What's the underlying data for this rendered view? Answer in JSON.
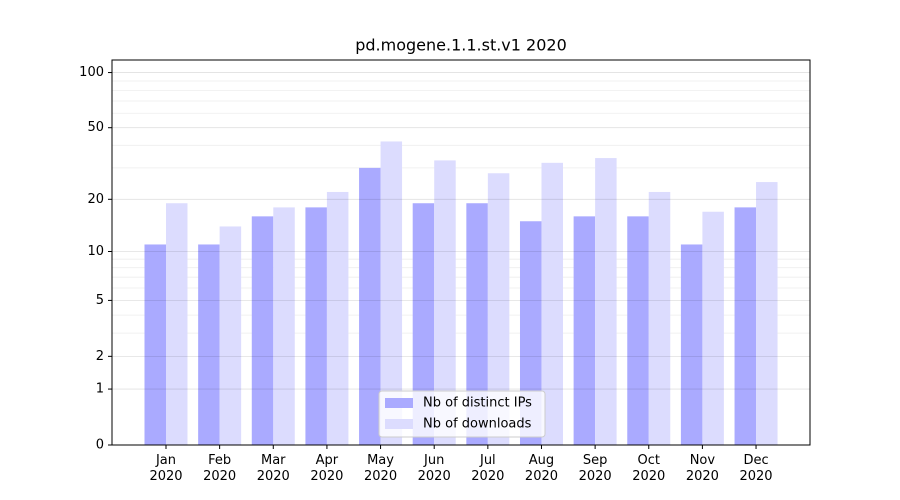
{
  "chart_data": {
    "type": "bar",
    "title": "pd.mogene.1.1.st.v1 2020",
    "categories": [
      "Jan 2020",
      "Feb 2020",
      "Mar 2020",
      "Apr 2020",
      "May 2020",
      "Jun 2020",
      "Jul 2020",
      "Aug 2020",
      "Sep 2020",
      "Oct 2020",
      "Nov 2020",
      "Dec 2020"
    ],
    "series": [
      {
        "name": "Nb of distinct IPs",
        "color": "#aaaaff",
        "values": [
          11,
          11,
          16,
          18,
          30,
          19,
          19,
          15,
          16,
          16,
          11,
          18
        ]
      },
      {
        "name": "Nb of downloads",
        "color": "#dcdcfe",
        "values": [
          19,
          14,
          18,
          22,
          42,
          33,
          28,
          32,
          34,
          22,
          17,
          25
        ]
      }
    ],
    "yscale": "log1p",
    "ylim": [
      0,
      117
    ],
    "yticks": [
      0,
      1,
      2,
      5,
      10,
      20,
      50,
      100
    ],
    "yminorticks": [
      3,
      4,
      6,
      7,
      8,
      9,
      30,
      40,
      60,
      70,
      80,
      90
    ],
    "grid": true,
    "legend": "lower center"
  }
}
